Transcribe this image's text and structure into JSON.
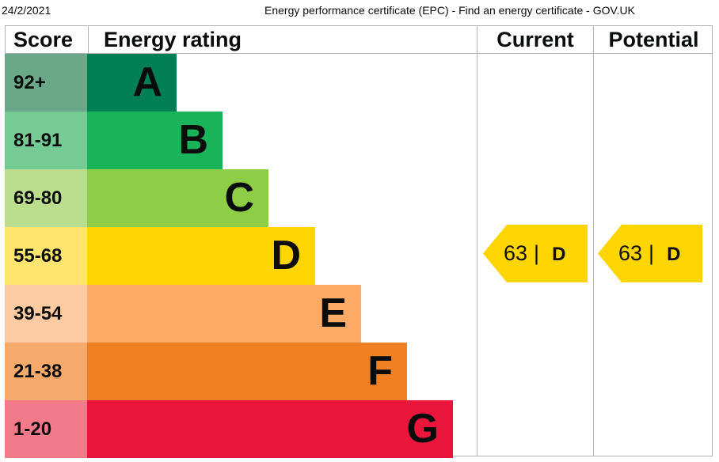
{
  "print": {
    "date": "24/2/2021",
    "title": "Energy performance certificate (EPC) - Find an energy certificate - GOV.UK"
  },
  "headers": {
    "score": "Score",
    "energy_rating": "Energy rating",
    "current": "Current",
    "potential": "Potential"
  },
  "bands": [
    {
      "score": "92+",
      "letter": "A",
      "bar_color": "#008054",
      "score_bg": "#6aa889"
    },
    {
      "score": "81-91",
      "letter": "B",
      "bar_color": "#19b459",
      "score_bg": "#75cb93"
    },
    {
      "score": "69-80",
      "letter": "C",
      "bar_color": "#8dce46",
      "score_bg": "#badd8e"
    },
    {
      "score": "55-68",
      "letter": "D",
      "bar_color": "#ffd500",
      "score_bg": "#ffe56d"
    },
    {
      "score": "39-54",
      "letter": "E",
      "bar_color": "#fcaa65",
      "score_bg": "#fdcaa1"
    },
    {
      "score": "21-38",
      "letter": "F",
      "bar_color": "#ef8023",
      "score_bg": "#f5aa6b"
    },
    {
      "score": "1-20",
      "letter": "G",
      "bar_color": "#e9153b",
      "score_bg": "#f27a8a"
    }
  ],
  "current": {
    "value": "63",
    "separator": "|",
    "letter": "D",
    "color": "#ffd500"
  },
  "potential": {
    "value": "63",
    "separator": "|",
    "letter": "D",
    "color": "#ffd500"
  }
}
